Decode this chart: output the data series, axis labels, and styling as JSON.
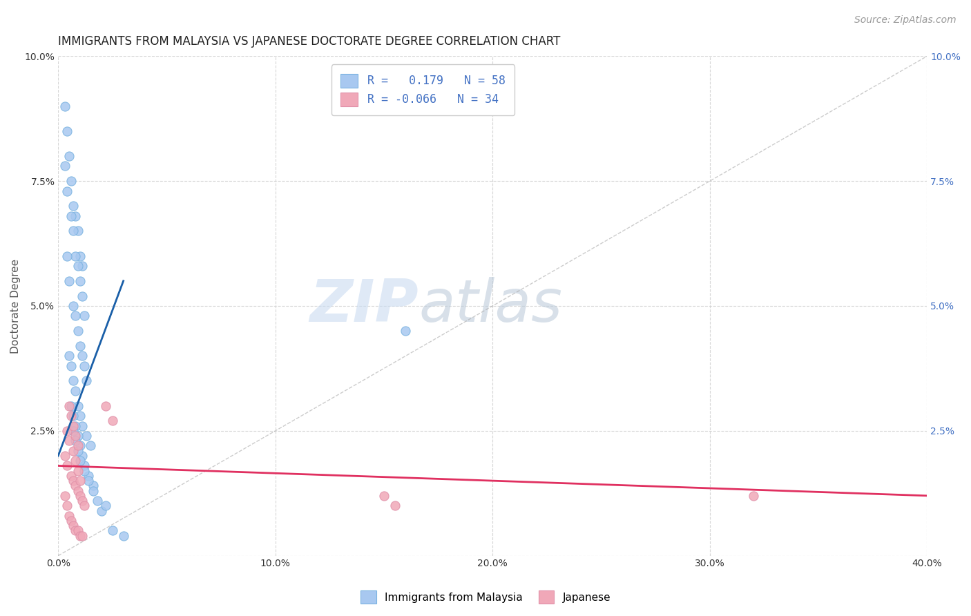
{
  "title": "IMMIGRANTS FROM MALAYSIA VS JAPANESE DOCTORATE DEGREE CORRELATION CHART",
  "source_text": "Source: ZipAtlas.com",
  "ylabel": "Doctorate Degree",
  "xlabel": "",
  "xlim": [
    0.0,
    0.4
  ],
  "ylim": [
    0.0,
    0.1
  ],
  "xtick_labels": [
    "0.0%",
    "10.0%",
    "20.0%",
    "30.0%",
    "40.0%"
  ],
  "xtick_values": [
    0.0,
    0.1,
    0.2,
    0.3,
    0.4
  ],
  "ytick_labels_left": [
    "",
    "2.5%",
    "5.0%",
    "7.5%",
    "10.0%"
  ],
  "ytick_values": [
    0.0,
    0.025,
    0.05,
    0.075,
    0.1
  ],
  "ytick_labels_right": [
    "",
    "2.5%",
    "5.0%",
    "7.5%",
    "10.0%"
  ],
  "legend_r_values": [
    "0.179",
    "-0.066"
  ],
  "legend_n_values": [
    "58",
    "34"
  ],
  "series": [
    {
      "name": "Immigrants from Malaysia",
      "color": "#7ab3e0",
      "face_color": "#a8c8f0",
      "trend_color": "#1a5fa8",
      "x": [
        0.003,
        0.004,
        0.005,
        0.006,
        0.007,
        0.008,
        0.009,
        0.01,
        0.011,
        0.003,
        0.004,
        0.006,
        0.007,
        0.008,
        0.009,
        0.01,
        0.011,
        0.012,
        0.004,
        0.005,
        0.007,
        0.008,
        0.009,
        0.01,
        0.011,
        0.012,
        0.013,
        0.005,
        0.006,
        0.007,
        0.008,
        0.009,
        0.01,
        0.011,
        0.013,
        0.015,
        0.006,
        0.007,
        0.008,
        0.009,
        0.01,
        0.011,
        0.012,
        0.014,
        0.016,
        0.007,
        0.008,
        0.009,
        0.01,
        0.012,
        0.014,
        0.016,
        0.018,
        0.02,
        0.022,
        0.025,
        0.03,
        0.16
      ],
      "y": [
        0.09,
        0.085,
        0.08,
        0.075,
        0.07,
        0.068,
        0.065,
        0.06,
        0.058,
        0.078,
        0.073,
        0.068,
        0.065,
        0.06,
        0.058,
        0.055,
        0.052,
        0.048,
        0.06,
        0.055,
        0.05,
        0.048,
        0.045,
        0.042,
        0.04,
        0.038,
        0.035,
        0.04,
        0.038,
        0.035,
        0.033,
        0.03,
        0.028,
        0.026,
        0.024,
        0.022,
        0.03,
        0.028,
        0.026,
        0.024,
        0.022,
        0.02,
        0.018,
        0.016,
        0.014,
        0.025,
        0.023,
        0.021,
        0.019,
        0.017,
        0.015,
        0.013,
        0.011,
        0.009,
        0.01,
        0.005,
        0.004,
        0.045
      ],
      "trend_x_start": 0.0,
      "trend_x_end": 0.03,
      "trend_y_start": 0.02,
      "trend_y_end": 0.055
    },
    {
      "name": "Japanese",
      "color": "#e090a8",
      "face_color": "#f0a8b8",
      "trend_color": "#e03060",
      "x": [
        0.003,
        0.004,
        0.005,
        0.006,
        0.007,
        0.008,
        0.009,
        0.01,
        0.011,
        0.003,
        0.004,
        0.006,
        0.007,
        0.008,
        0.009,
        0.01,
        0.011,
        0.012,
        0.004,
        0.005,
        0.007,
        0.008,
        0.009,
        0.01,
        0.022,
        0.025,
        0.005,
        0.006,
        0.007,
        0.008,
        0.009,
        0.15,
        0.155,
        0.32
      ],
      "y": [
        0.012,
        0.01,
        0.008,
        0.007,
        0.006,
        0.005,
        0.005,
        0.004,
        0.004,
        0.02,
        0.018,
        0.016,
        0.015,
        0.014,
        0.013,
        0.012,
        0.011,
        0.01,
        0.025,
        0.023,
        0.021,
        0.019,
        0.017,
        0.015,
        0.03,
        0.027,
        0.03,
        0.028,
        0.026,
        0.024,
        0.022,
        0.012,
        0.01,
        0.012
      ],
      "trend_x_start": 0.0,
      "trend_x_end": 0.4,
      "trend_y_start": 0.018,
      "trend_y_end": 0.012
    }
  ],
  "watermark_zip_color": "#c5d8f0",
  "watermark_atlas_color": "#b8c8d8",
  "title_color": "#222222",
  "grid_color": "#cccccc",
  "background_color": "#ffffff",
  "title_fontsize": 12,
  "axis_fontsize": 11,
  "tick_fontsize": 10,
  "source_fontsize": 10,
  "right_ytick_color": "#4472c4"
}
